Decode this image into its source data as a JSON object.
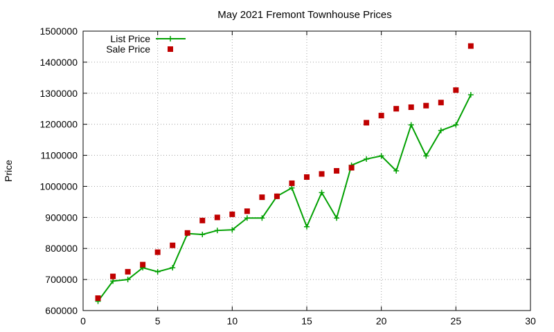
{
  "chart_data": {
    "type": "line",
    "title": "May 2021 Fremont Townhouse Prices",
    "xlabel": "",
    "ylabel": "Price",
    "xlim": [
      0,
      30
    ],
    "ylim": [
      600000,
      1500000
    ],
    "x_ticks": [
      0,
      5,
      10,
      15,
      20,
      25,
      30
    ],
    "y_ticks": [
      600000,
      700000,
      800000,
      900000,
      1000000,
      1100000,
      1200000,
      1300000,
      1400000,
      1500000
    ],
    "grid": true,
    "legend_position": "top-left",
    "series": [
      {
        "name": "List Price",
        "style": "line-plus",
        "color": "#00a000",
        "x": [
          1,
          2,
          3,
          4,
          5,
          6,
          7,
          8,
          9,
          10,
          11,
          12,
          13,
          14,
          15,
          16,
          17,
          18,
          19,
          20,
          21,
          22,
          23,
          24,
          25,
          26
        ],
        "values": [
          630000,
          695000,
          700000,
          738000,
          725000,
          738000,
          848000,
          845000,
          858000,
          860000,
          898000,
          898000,
          968000,
          995000,
          870000,
          980000,
          898000,
          1068000,
          1088000,
          1098000,
          1050000,
          1198000,
          1098000,
          1180000,
          1198000,
          1295000
        ]
      },
      {
        "name": "Sale Price",
        "style": "square",
        "color": "#c00000",
        "x": [
          1,
          2,
          3,
          4,
          5,
          6,
          7,
          8,
          9,
          10,
          11,
          12,
          13,
          14,
          15,
          16,
          17,
          18,
          19,
          20,
          21,
          22,
          23,
          24,
          25,
          26
        ],
        "values": [
          640000,
          710000,
          725000,
          748000,
          788000,
          810000,
          850000,
          890000,
          900000,
          910000,
          920000,
          965000,
          968000,
          1010000,
          1030000,
          1040000,
          1050000,
          1060000,
          1205000,
          1228000,
          1250000,
          1255000,
          1260000,
          1270000,
          1310000,
          1452000
        ]
      }
    ]
  }
}
